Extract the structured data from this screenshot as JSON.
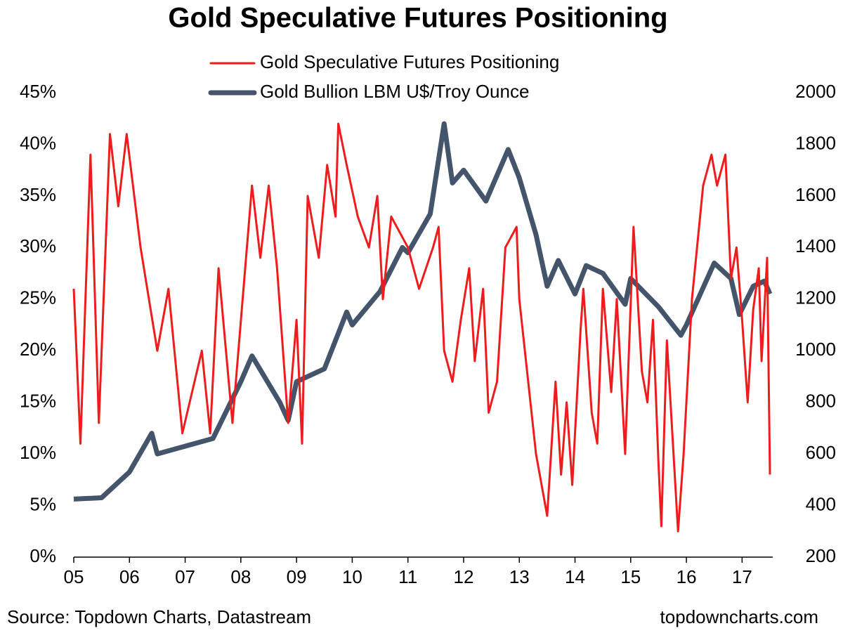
{
  "chart_data": {
    "type": "line",
    "title": "Gold Speculative Futures Positioning",
    "source": "Source: Topdown Charts, Datastream",
    "credit": "topdowncharts.com",
    "xlim": [
      2005,
      2017.5
    ],
    "xticks": [
      {
        "value": 2005,
        "label": "05"
      },
      {
        "value": 2006,
        "label": "06"
      },
      {
        "value": 2007,
        "label": "07"
      },
      {
        "value": 2008,
        "label": "08"
      },
      {
        "value": 2009,
        "label": "09"
      },
      {
        "value": 2010,
        "label": "10"
      },
      {
        "value": 2011,
        "label": "11"
      },
      {
        "value": 2012,
        "label": "12"
      },
      {
        "value": 2013,
        "label": "13"
      },
      {
        "value": 2014,
        "label": "14"
      },
      {
        "value": 2015,
        "label": "15"
      },
      {
        "value": 2016,
        "label": "16"
      },
      {
        "value": 2017,
        "label": "17"
      }
    ],
    "ylim": [
      0,
      45
    ],
    "yticks": [
      {
        "value": 0,
        "label": "0%"
      },
      {
        "value": 5,
        "label": "5%"
      },
      {
        "value": 10,
        "label": "10%"
      },
      {
        "value": 15,
        "label": "15%"
      },
      {
        "value": 20,
        "label": "20%"
      },
      {
        "value": 25,
        "label": "25%"
      },
      {
        "value": 30,
        "label": "30%"
      },
      {
        "value": 35,
        "label": "35%"
      },
      {
        "value": 40,
        "label": "40%"
      },
      {
        "value": 45,
        "label": "45%"
      }
    ],
    "y2lim": [
      200,
      2000
    ],
    "y2ticks": [
      200,
      400,
      600,
      800,
      1000,
      1200,
      1400,
      1600,
      1800,
      2000
    ],
    "series": [
      {
        "name": "Gold Speculative Futures Positioning",
        "color": "#ee1c1c",
        "width": 3,
        "x": [
          2005,
          2005.12,
          2005.3,
          2005.45,
          2005.65,
          2005.8,
          2005.95,
          2006.2,
          2006.5,
          2006.7,
          2006.95,
          2007.3,
          2007.45,
          2007.6,
          2007.85,
          2008.2,
          2008.35,
          2008.5,
          2008.65,
          2008.85,
          2009.0,
          2009.1,
          2009.2,
          2009.4,
          2009.55,
          2009.7,
          2009.75,
          2009.9,
          2010.1,
          2010.3,
          2010.45,
          2010.55,
          2010.7,
          2011.0,
          2011.2,
          2011.45,
          2011.55,
          2011.65,
          2011.8,
          2011.95,
          2012.1,
          2012.2,
          2012.35,
          2012.45,
          2012.6,
          2012.75,
          2012.95,
          2013.0,
          2013.3,
          2013.5,
          2013.65,
          2013.75,
          2013.85,
          2013.95,
          2014.1,
          2014.15,
          2014.3,
          2014.4,
          2014.5,
          2014.65,
          2014.75,
          2014.9,
          2015.05,
          2015.2,
          2015.3,
          2015.4,
          2015.5,
          2015.55,
          2015.65,
          2015.85,
          2015.95,
          2016.1,
          2016.3,
          2016.45,
          2016.55,
          2016.7,
          2016.8,
          2016.9,
          2017.0,
          2017.1,
          2017.2,
          2017.3,
          2017.35,
          2017.45,
          2017.5
        ],
        "values": [
          26,
          11,
          39,
          13,
          41,
          34,
          41,
          30,
          20,
          26,
          12,
          20,
          12,
          28,
          13,
          36,
          29,
          36,
          28,
          13,
          23,
          11,
          35,
          29,
          38,
          33,
          42,
          38,
          33,
          30,
          35,
          25,
          33,
          30,
          26,
          30,
          32,
          20,
          17,
          23,
          28,
          19,
          26,
          14,
          17,
          30,
          32,
          25,
          10,
          4,
          17,
          8,
          15,
          7,
          22,
          26,
          14,
          11,
          26,
          16,
          25,
          10,
          32,
          18,
          15,
          23,
          9,
          3,
          21,
          2.5,
          10,
          25,
          36,
          39,
          36,
          39,
          27,
          30,
          23,
          15,
          24,
          28,
          19,
          29,
          8
        ]
      },
      {
        "name": "Gold Bullion LBM U$/Troy Ounce",
        "color": "#44546a",
        "width": 7,
        "axis": "y2",
        "x": [
          2005,
          2005.5,
          2006.0,
          2006.4,
          2006.5,
          2007,
          2007.5,
          2008,
          2008.2,
          2008.7,
          2008.85,
          2009,
          2009.5,
          2009.9,
          2010,
          2010.5,
          2010.9,
          2011,
          2011.4,
          2011.65,
          2011.8,
          2012,
          2012.4,
          2012.8,
          2013,
          2013.3,
          2013.5,
          2013.7,
          2014,
          2014.2,
          2014.5,
          2014.9,
          2015,
          2015.5,
          2015.9,
          2016,
          2016.5,
          2016.8,
          2016.95,
          2017.2,
          2017.4,
          2017.5
        ],
        "values": [
          425,
          430,
          530,
          680,
          600,
          630,
          660,
          880,
          980,
          800,
          730,
          880,
          930,
          1150,
          1100,
          1230,
          1400,
          1380,
          1530,
          1880,
          1650,
          1700,
          1580,
          1780,
          1670,
          1450,
          1250,
          1350,
          1220,
          1330,
          1300,
          1180,
          1280,
          1170,
          1060,
          1100,
          1340,
          1280,
          1140,
          1250,
          1270,
          1220
        ]
      }
    ]
  }
}
